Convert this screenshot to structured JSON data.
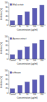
{
  "chart_data": [
    {
      "type": "bar",
      "x_label": "Concentration (µg/ml)",
      "y_label": "Inhibition (%)",
      "categories": [
        "Control",
        "10",
        "50",
        "100",
        "200"
      ],
      "series": [
        {
          "name": "Ethyl acetate",
          "color": "#5b5bb5",
          "values": [
            20,
            45,
            60,
            75,
            90
          ]
        }
      ],
      "ylim": [
        0,
        100
      ],
      "yticks": [
        0,
        20,
        40,
        60,
        80,
        100
      ],
      "grid": false,
      "legend": "upper left"
    },
    {
      "type": "bar",
      "x_label": "Concentration (µg/ml)",
      "y_label": "Inhibition (%)",
      "categories": [
        "Control",
        "10",
        "50",
        "100",
        "200"
      ],
      "series": [
        {
          "name": "Aqueous extract",
          "color": "#5b5bb5",
          "values": [
            20,
            40,
            55,
            70,
            85
          ]
        }
      ],
      "ylim": [
        0,
        100
      ],
      "yticks": [
        0,
        20,
        40,
        60,
        80,
        100
      ],
      "grid": false,
      "legend": "upper left"
    },
    {
      "type": "bar",
      "x_label": "Concentration (µg/ml)",
      "y_label": "Inhibition (%)",
      "categories": [
        "Control",
        "10",
        "50",
        "100",
        "200"
      ],
      "series": [
        {
          "name": "n-Hexane",
          "color": "#5b5bb5",
          "values": [
            20,
            35,
            50,
            60,
            80
          ]
        }
      ],
      "ylim": [
        0,
        100
      ],
      "yticks": [
        0,
        20,
        40,
        60,
        80,
        100
      ],
      "grid": false,
      "legend": "upper left"
    }
  ]
}
